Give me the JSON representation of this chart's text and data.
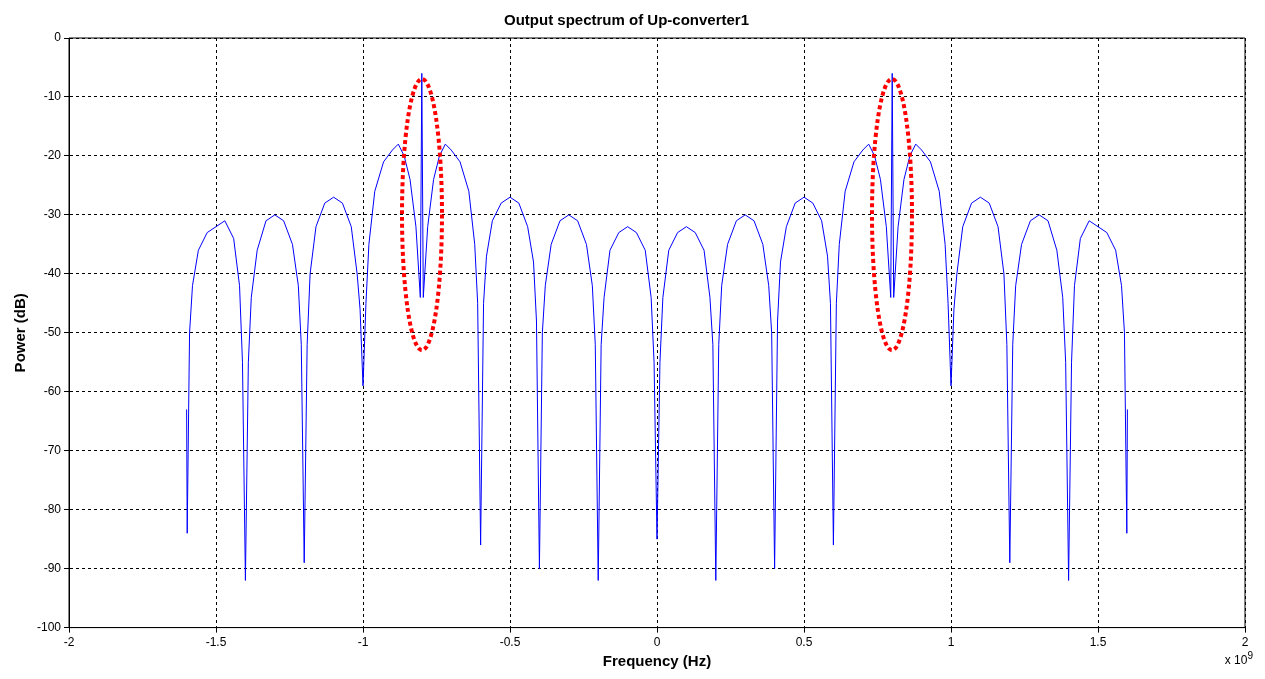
{
  "chart_data": {
    "type": "line",
    "title": "Output spectrum of Up-converter1",
    "xlabel": "Frequency (Hz)",
    "ylabel": "Power (dB)",
    "annotations": [
      "x 10$^{9}$"
    ],
    "xlim": [
      -2,
      2
    ],
    "xticks": [
      -2,
      -1.5,
      -1,
      -0.5,
      0,
      0.5,
      1,
      1.5,
      2
    ],
    "ylim": [
      -100,
      0
    ],
    "yticks": [
      -100,
      -90,
      -80,
      -70,
      -60,
      -50,
      -40,
      -30,
      -20,
      -10,
      0
    ],
    "grid": true,
    "legend": false,
    "marker": "none",
    "line_style": "solid",
    "series": [
      {
        "color": "#0000ff",
        "x": [
          -1.6,
          -1.598,
          -1.59,
          -1.58,
          -1.56,
          -1.53,
          -1.5,
          -1.47,
          -1.44,
          -1.42,
          -1.41,
          -1.4,
          -1.39,
          -1.38,
          -1.36,
          -1.33,
          -1.3,
          -1.27,
          -1.24,
          -1.22,
          -1.21,
          -1.2,
          -1.19,
          -1.18,
          -1.16,
          -1.13,
          -1.1,
          -1.07,
          -1.04,
          -1.02,
          -1.01,
          -1.0,
          -0.99,
          -0.98,
          -0.96,
          -0.93,
          -0.9,
          -0.88,
          -0.86,
          -0.84,
          -0.82,
          -0.805,
          -0.8,
          -0.795,
          -0.78,
          -0.76,
          -0.74,
          -0.72,
          -0.7,
          -0.67,
          -0.64,
          -0.62,
          -0.61,
          -0.6,
          -0.59,
          -0.58,
          -0.56,
          -0.53,
          -0.5,
          -0.47,
          -0.44,
          -0.42,
          -0.41,
          -0.4,
          -0.39,
          -0.38,
          -0.36,
          -0.33,
          -0.3,
          -0.27,
          -0.24,
          -0.22,
          -0.21,
          -0.2,
          -0.19,
          -0.18,
          -0.16,
          -0.13,
          -0.1,
          -0.07,
          -0.04,
          -0.02,
          -0.01,
          0,
          0.01,
          0.02,
          0.04,
          0.07,
          0.1,
          0.13,
          0.16,
          0.18,
          0.19,
          0.2,
          0.21,
          0.22,
          0.24,
          0.27,
          0.3,
          0.33,
          0.36,
          0.38,
          0.39,
          0.4,
          0.41,
          0.42,
          0.44,
          0.47,
          0.5,
          0.53,
          0.56,
          0.58,
          0.59,
          0.6,
          0.61,
          0.62,
          0.64,
          0.67,
          0.7,
          0.72,
          0.74,
          0.76,
          0.78,
          0.795,
          0.8,
          0.805,
          0.82,
          0.84,
          0.86,
          0.88,
          0.9,
          0.93,
          0.96,
          0.98,
          0.99,
          1.0,
          1.01,
          1.02,
          1.04,
          1.07,
          1.1,
          1.13,
          1.16,
          1.18,
          1.19,
          1.2,
          1.21,
          1.22,
          1.24,
          1.27,
          1.3,
          1.33,
          1.36,
          1.38,
          1.39,
          1.4,
          1.41,
          1.42,
          1.44,
          1.47,
          1.5,
          1.53,
          1.56,
          1.58,
          1.59,
          1.598,
          1.6
        ],
        "values": [
          -63,
          -84,
          -50,
          -42,
          -36,
          -33,
          -32,
          -31,
          -34,
          -42,
          -55,
          -92,
          -55,
          -44,
          -36,
          -31,
          -30,
          -31,
          -35,
          -42,
          -52,
          -89,
          -52,
          -40,
          -32,
          -28,
          -27,
          -28,
          -32,
          -40,
          -46,
          -59,
          -45,
          -35,
          -26,
          -21,
          -19,
          -18,
          -20,
          -24,
          -32,
          -44,
          -6,
          -44,
          -32,
          -24,
          -20,
          -18,
          -19,
          -21,
          -26,
          -35,
          -45,
          -86,
          -45,
          -37,
          -31,
          -28,
          -27,
          -28,
          -32,
          -38,
          -48,
          -90,
          -50,
          -42,
          -35,
          -31,
          -30,
          -31,
          -35,
          -42,
          -52,
          -92,
          -52,
          -44,
          -36,
          -33,
          -32,
          -33,
          -36,
          -44,
          -55,
          -85,
          -55,
          -44,
          -36,
          -33,
          -32,
          -33,
          -36,
          -44,
          -52,
          -92,
          -52,
          -42,
          -35,
          -31,
          -30,
          -31,
          -35,
          -42,
          -50,
          -90,
          -48,
          -38,
          -32,
          -28,
          -27,
          -28,
          -31,
          -37,
          -45,
          -86,
          -45,
          -35,
          -26,
          -21,
          -19,
          -18,
          -20,
          -24,
          -32,
          -44,
          -6,
          -44,
          -32,
          -24,
          -20,
          -18,
          -19,
          -21,
          -26,
          -35,
          -45,
          -59,
          -46,
          -40,
          -32,
          -28,
          -27,
          -28,
          -32,
          -40,
          -52,
          -89,
          -52,
          -42,
          -35,
          -31,
          -30,
          -31,
          -36,
          -44,
          -55,
          -92,
          -55,
          -42,
          -34,
          -31,
          -32,
          -33,
          -36,
          -42,
          -50,
          -84,
          -63
        ]
      }
    ]
  }
}
